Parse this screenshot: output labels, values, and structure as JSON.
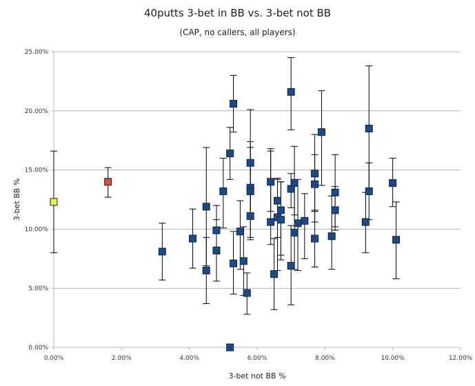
{
  "chart_data": {
    "type": "scatter",
    "title": "40putts 3-bet in BB vs. 3-bet not BB",
    "subtitle": "(CAP, no callers, all players)",
    "xlabel": "3-bet not BB %",
    "ylabel": "3-bet BB %",
    "xlim": [
      0,
      12
    ],
    "ylim": [
      0,
      25
    ],
    "xticks": [
      "0.00%",
      "2.00%",
      "4.00%",
      "6.00%",
      "8.00%",
      "10.00%",
      "12.00%"
    ],
    "yticks": [
      "0.00%",
      "5.00%",
      "10.00%",
      "15.00%",
      "20.00%",
      "25.00%"
    ],
    "grid": "horizontal",
    "colors": {
      "default": "#1c4a86",
      "border": "#0d2440",
      "highlight_yellow": "#f2f23a",
      "highlight_red": "#e0502a",
      "grid": "#b4b4b4",
      "errorbar": "#000000"
    },
    "points": [
      {
        "x": 0.0,
        "y": 12.3,
        "lo": 8.0,
        "hi": 16.6,
        "color": "highlight_yellow"
      },
      {
        "x": 1.6,
        "y": 14.0,
        "lo": 12.7,
        "hi": 15.2,
        "color": "highlight_red"
      },
      {
        "x": 3.2,
        "y": 8.1,
        "lo": 5.7,
        "hi": 10.5
      },
      {
        "x": 4.1,
        "y": 9.2,
        "lo": 6.7,
        "hi": 11.7
      },
      {
        "x": 4.5,
        "y": 11.9,
        "lo": 6.9,
        "hi": 16.9
      },
      {
        "x": 4.5,
        "y": 6.5,
        "lo": 3.7,
        "hi": 9.3
      },
      {
        "x": 4.8,
        "y": 9.9,
        "lo": 7.9,
        "hi": 12.0
      },
      {
        "x": 4.8,
        "y": 8.2,
        "lo": 5.6,
        "hi": 10.8
      },
      {
        "x": 5.0,
        "y": 13.2,
        "lo": 10.1,
        "hi": 16.0
      },
      {
        "x": 5.2,
        "y": 16.4,
        "lo": 14.2,
        "hi": 18.6
      },
      {
        "x": 5.3,
        "y": 20.6,
        "lo": 18.2,
        "hi": 23.0
      },
      {
        "x": 5.3,
        "y": 7.1,
        "lo": 4.5,
        "hi": 9.8
      },
      {
        "x": 5.5,
        "y": 9.8,
        "lo": 6.6,
        "hi": 12.4
      },
      {
        "x": 5.6,
        "y": 7.3,
        "lo": 4.4,
        "hi": 10.2
      },
      {
        "x": 5.7,
        "y": 4.6,
        "lo": 2.8,
        "hi": 6.3
      },
      {
        "x": 5.8,
        "y": 15.6,
        "lo": 13.0,
        "hi": 20.1
      },
      {
        "x": 5.8,
        "y": 13.5,
        "lo": 11.0,
        "hi": 17.4
      },
      {
        "x": 5.8,
        "y": 13.2,
        "lo": 9.3,
        "hi": 16.9
      },
      {
        "x": 5.8,
        "y": 11.1,
        "lo": 9.1,
        "hi": 13.6
      },
      {
        "x": 5.2,
        "y": 0.0
      },
      {
        "x": 6.4,
        "y": 14.0,
        "lo": 11.5,
        "hi": 16.8
      },
      {
        "x": 6.4,
        "y": 10.6,
        "lo": 8.7,
        "hi": 16.6
      },
      {
        "x": 6.5,
        "y": 6.2,
        "lo": 3.2,
        "hi": 9.2
      },
      {
        "x": 6.6,
        "y": 12.4,
        "lo": 9.3,
        "hi": 14.3
      },
      {
        "x": 6.6,
        "y": 11.0,
        "lo": 6.5,
        "hi": 14.2
      },
      {
        "x": 6.7,
        "y": 11.6,
        "lo": 7.8,
        "hi": 14.0
      },
      {
        "x": 6.7,
        "y": 10.8,
        "lo": 7.4,
        "hi": 14.0
      },
      {
        "x": 7.0,
        "y": 21.6,
        "lo": 18.4,
        "hi": 24.5
      },
      {
        "x": 7.0,
        "y": 13.4,
        "lo": 11.8,
        "hi": 14.7
      },
      {
        "x": 7.0,
        "y": 6.9,
        "lo": 3.6,
        "hi": 10.3
      },
      {
        "x": 7.1,
        "y": 13.9,
        "lo": 11.2,
        "hi": 17.0
      },
      {
        "x": 7.1,
        "y": 9.7,
        "lo": 6.6,
        "hi": 14.2
      },
      {
        "x": 7.2,
        "y": 10.5,
        "lo": 6.5,
        "hi": 14.2
      },
      {
        "x": 7.4,
        "y": 10.7,
        "lo": 7.5,
        "hi": 13.0
      },
      {
        "x": 7.7,
        "y": 14.7,
        "lo": 11.6,
        "hi": 18.0
      },
      {
        "x": 7.7,
        "y": 13.8,
        "lo": 10.6,
        "hi": 16.3
      },
      {
        "x": 7.7,
        "y": 9.2,
        "lo": 6.8,
        "hi": 11.5
      },
      {
        "x": 7.9,
        "y": 18.2,
        "lo": 13.7,
        "hi": 21.7
      },
      {
        "x": 8.2,
        "y": 9.4,
        "lo": 6.6,
        "hi": 12.8
      },
      {
        "x": 8.3,
        "y": 11.6,
        "lo": 9.9,
        "hi": 13.6
      },
      {
        "x": 8.3,
        "y": 13.1,
        "lo": 10.2,
        "hi": 16.3
      },
      {
        "x": 9.2,
        "y": 10.6,
        "lo": 8.0,
        "hi": 13.1
      },
      {
        "x": 9.3,
        "y": 18.5,
        "lo": 13.0,
        "hi": 23.8
      },
      {
        "x": 9.3,
        "y": 13.2,
        "lo": 10.8,
        "hi": 15.6
      },
      {
        "x": 10.0,
        "y": 13.9,
        "lo": 11.9,
        "hi": 16.0
      },
      {
        "x": 10.1,
        "y": 9.1,
        "lo": 5.8,
        "hi": 12.3
      }
    ]
  }
}
